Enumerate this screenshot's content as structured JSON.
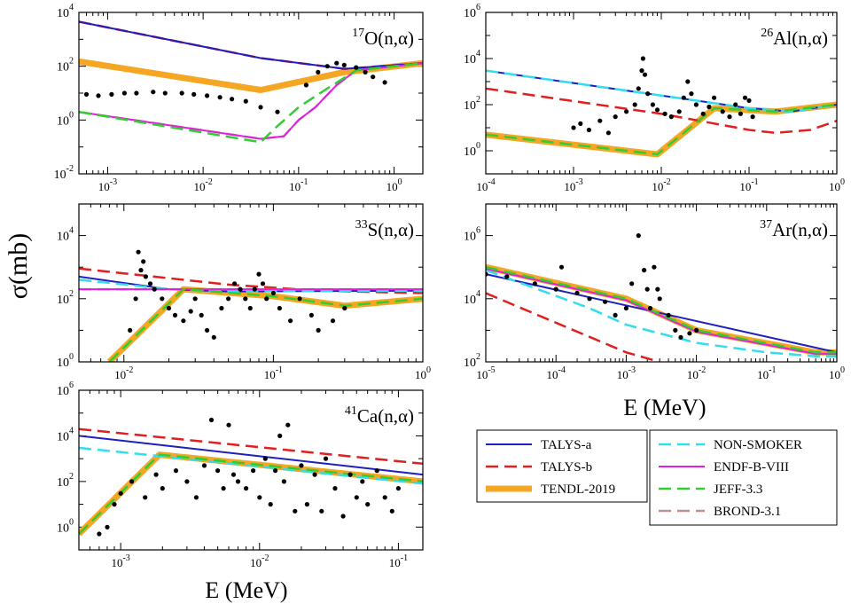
{
  "figure": {
    "ylabel": "σ(mb)",
    "xlabel": "E (MeV)"
  },
  "legend": {
    "groups": [
      {
        "items": [
          {
            "label": "TALYS-a",
            "color": "#1f1fbf",
            "style": "solid",
            "width": 2
          },
          {
            "label": "TALYS-b",
            "color": "#e01f1f",
            "style": "dashed",
            "width": 2.5
          },
          {
            "label": "TENDL-2019",
            "color": "#f5a623",
            "style": "solid",
            "width": 7
          }
        ]
      },
      {
        "items": [
          {
            "label": "NON-SMOKER",
            "color": "#33ddee",
            "style": "dashed",
            "width": 2.5
          },
          {
            "label": "ENDF-B-VIII",
            "color": "#e020e0",
            "style": "solid",
            "width": 2
          },
          {
            "label": "JEFF-3.3",
            "color": "#33cc33",
            "style": "dashed",
            "width": 2.5
          },
          {
            "label": "BROND-3.1",
            "color": "#c09090",
            "style": "dashed",
            "width": 2.5
          }
        ]
      }
    ]
  },
  "chart_data": [
    {
      "type": "line",
      "id": "O17",
      "title": {
        "mass": "17",
        "rest": "O(n,α)"
      },
      "xscale": "log",
      "yscale": "log",
      "xlim": [
        0.0005,
        2
      ],
      "ylim": [
        0.01,
        10000
      ],
      "xticks": [
        {
          "exp": "-3",
          "v": 0.001
        },
        {
          "exp": "-2",
          "v": 0.01
        },
        {
          "exp": "-1",
          "v": 0.1
        },
        {
          "exp": "0",
          "v": 1
        }
      ],
      "yticks": [
        {
          "exp": "-2",
          "v": 0.01
        },
        {
          "exp": "0",
          "v": 1
        },
        {
          "exp": "2",
          "v": 100
        },
        {
          "exp": "4",
          "v": 10000
        }
      ],
      "series": [
        {
          "name": "TENDL-2019",
          "x": [
            0.0005,
            0.04,
            0.3,
            2
          ],
          "y": [
            150,
            13,
            60,
            130
          ]
        },
        {
          "name": "TALYS-a",
          "x": [
            0.0005,
            0.04,
            0.3,
            2
          ],
          "y": [
            4500,
            200,
            80,
            130
          ]
        },
        {
          "name": "TALYS-b",
          "x": [
            0.0005,
            0.04,
            0.3,
            2
          ],
          "y": [
            4500,
            200,
            80,
            130
          ]
        },
        {
          "name": "JEFF-3.3",
          "x": [
            0.0005,
            0.04,
            0.06,
            0.1,
            0.2,
            0.4,
            2
          ],
          "y": [
            2,
            0.15,
            0.6,
            3,
            15,
            70,
            130
          ]
        },
        {
          "name": "ENDF-B-VIII",
          "x": [
            0.0005,
            0.04,
            0.07,
            0.1,
            0.15,
            0.25,
            0.4,
            2
          ],
          "y": [
            2,
            0.2,
            0.25,
            1,
            3,
            20,
            70,
            130
          ]
        },
        {
          "name": "BROND-3.1",
          "x": [
            0.0005,
            0.04,
            0.07,
            0.1,
            0.15,
            0.25,
            0.4,
            2
          ],
          "y": [
            2,
            0.2,
            0.25,
            1,
            3,
            20,
            70,
            130
          ]
        },
        {
          "name": "data",
          "kind": "points",
          "x": [
            0.0006,
            0.0008,
            0.0011,
            0.0015,
            0.002,
            0.003,
            0.004,
            0.006,
            0.008,
            0.011,
            0.015,
            0.02,
            0.028,
            0.04,
            0.06,
            0.12,
            0.16,
            0.2,
            0.25,
            0.3,
            0.4,
            0.5,
            0.6,
            0.8
          ],
          "y": [
            9,
            8,
            9,
            10,
            10,
            11,
            10,
            10,
            9,
            8,
            7,
            6,
            5,
            3,
            2,
            20,
            60,
            100,
            130,
            110,
            90,
            60,
            40,
            25
          ]
        }
      ]
    },
    {
      "type": "line",
      "id": "Al26",
      "title": {
        "mass": "26",
        "rest": "Al(n,α)"
      },
      "xscale": "log",
      "yscale": "log",
      "xlim": [
        0.0001,
        1
      ],
      "ylim": [
        0.1,
        1000000
      ],
      "xticks": [
        {
          "exp": "-4",
          "v": 0.0001
        },
        {
          "exp": "-3",
          "v": 0.001
        },
        {
          "exp": "-2",
          "v": 0.01
        },
        {
          "exp": "-1",
          "v": 0.1
        },
        {
          "exp": "0",
          "v": 1
        }
      ],
      "yticks": [
        {
          "exp": "0",
          "v": 1
        },
        {
          "exp": "2",
          "v": 100
        },
        {
          "exp": "4",
          "v": 10000
        },
        {
          "exp": "6",
          "v": 1000000
        }
      ],
      "series": [
        {
          "name": "TENDL-2019",
          "x": [
            0.0001,
            0.009,
            0.04,
            0.2,
            1
          ],
          "y": [
            5,
            0.7,
            70,
            50,
            100
          ]
        },
        {
          "name": "JEFF-3.3",
          "x": [
            0.0001,
            0.009,
            0.04,
            0.2,
            1
          ],
          "y": [
            5,
            0.7,
            70,
            50,
            100
          ]
        },
        {
          "name": "TALYS-a",
          "x": [
            0.0001,
            0.01,
            0.1,
            0.3,
            1
          ],
          "y": [
            3000,
            250,
            70,
            50,
            100
          ]
        },
        {
          "name": "NON-SMOKER",
          "x": [
            0.0001,
            0.01,
            0.1,
            0.3,
            1
          ],
          "y": [
            3000,
            250,
            70,
            50,
            100
          ]
        },
        {
          "name": "TALYS-b",
          "x": [
            0.0001,
            0.01,
            0.1,
            0.2,
            0.5,
            1
          ],
          "y": [
            500,
            40,
            8,
            6,
            8,
            20
          ]
        },
        {
          "name": "data",
          "kind": "points",
          "x": [
            0.001,
            0.0012,
            0.0015,
            0.002,
            0.0025,
            0.003,
            0.004,
            0.005,
            0.0055,
            0.006,
            0.0062,
            0.0065,
            0.007,
            0.008,
            0.009,
            0.011,
            0.013,
            0.016,
            0.018,
            0.02,
            0.022,
            0.025,
            0.03,
            0.035,
            0.04,
            0.05,
            0.06,
            0.07,
            0.08,
            0.09,
            0.1,
            0.11
          ],
          "y": [
            10,
            15,
            8,
            20,
            6,
            30,
            50,
            100,
            500,
            3000,
            10000,
            2000,
            300,
            100,
            60,
            40,
            30,
            50,
            200,
            1000,
            300,
            100,
            40,
            80,
            200,
            50,
            30,
            100,
            40,
            200,
            150,
            30
          ]
        }
      ]
    },
    {
      "type": "line",
      "id": "S33",
      "title": {
        "mass": "33",
        "rest": "S(n,α)"
      },
      "xscale": "log",
      "yscale": "log",
      "xlim": [
        0.005,
        1
      ],
      "ylim": [
        1,
        100000
      ],
      "xticks": [
        {
          "exp": "-2",
          "v": 0.01
        },
        {
          "exp": "-1",
          "v": 0.1
        },
        {
          "exp": "0",
          "v": 1
        }
      ],
      "yticks": [
        {
          "exp": "0",
          "v": 1
        },
        {
          "exp": "2",
          "v": 100
        },
        {
          "exp": "4",
          "v": 10000
        }
      ],
      "series": [
        {
          "name": "TENDL-2019",
          "x": [
            0.008,
            0.025,
            0.1,
            0.3,
            1
          ],
          "y": [
            1,
            200,
            120,
            60,
            100
          ]
        },
        {
          "name": "JEFF-3.3",
          "x": [
            0.008,
            0.025,
            0.1,
            0.3,
            1
          ],
          "y": [
            1,
            200,
            120,
            60,
            100
          ]
        },
        {
          "name": "TALYS-b",
          "x": [
            0.005,
            0.05,
            0.2,
            1
          ],
          "y": [
            900,
            280,
            180,
            150
          ]
        },
        {
          "name": "TALYS-a",
          "x": [
            0.005,
            0.02,
            0.05,
            1
          ],
          "y": [
            500,
            200,
            170,
            180
          ]
        },
        {
          "name": "NON-SMOKER",
          "x": [
            0.005,
            0.02,
            0.05,
            1
          ],
          "y": [
            400,
            200,
            170,
            180
          ]
        },
        {
          "name": "ENDF-B-VIII",
          "x": [
            0.005,
            1
          ],
          "y": [
            200,
            200
          ]
        },
        {
          "name": "BROND-3.1",
          "x": [
            0.005,
            1
          ],
          "y": [
            200,
            200
          ]
        },
        {
          "name": "data",
          "kind": "points",
          "x": [
            0.011,
            0.012,
            0.0125,
            0.013,
            0.0135,
            0.014,
            0.015,
            0.016,
            0.018,
            0.02,
            0.022,
            0.025,
            0.028,
            0.03,
            0.033,
            0.036,
            0.04,
            0.045,
            0.05,
            0.055,
            0.06,
            0.065,
            0.07,
            0.075,
            0.08,
            0.085,
            0.09,
            0.1,
            0.11,
            0.13,
            0.15,
            0.18,
            0.2,
            0.25,
            0.3
          ],
          "y": [
            10,
            100,
            3000,
            800,
            1500,
            500,
            300,
            200,
            100,
            50,
            30,
            20,
            40,
            100,
            30,
            10,
            6,
            50,
            100,
            300,
            200,
            100,
            50,
            200,
            600,
            300,
            100,
            150,
            50,
            20,
            100,
            30,
            10,
            20,
            50
          ]
        }
      ]
    },
    {
      "type": "line",
      "id": "Ar37",
      "title": {
        "mass": "37",
        "rest": "Ar(n,α)"
      },
      "xscale": "log",
      "yscale": "log",
      "xlim": [
        1e-05,
        1
      ],
      "ylim": [
        100,
        10000000
      ],
      "xticks": [
        {
          "exp": "-5",
          "v": 1e-05
        },
        {
          "exp": "-4",
          "v": 0.0001
        },
        {
          "exp": "-3",
          "v": 0.001
        },
        {
          "exp": "-2",
          "v": 0.01
        },
        {
          "exp": "-1",
          "v": 0.1
        },
        {
          "exp": "0",
          "v": 1
        }
      ],
      "yticks": [
        {
          "exp": "2",
          "v": 100
        },
        {
          "exp": "4",
          "v": 10000
        },
        {
          "exp": "6",
          "v": 1000000
        }
      ],
      "series": [
        {
          "name": "TENDL-2019",
          "x": [
            1e-05,
            0.001,
            0.01,
            0.5,
            1
          ],
          "y": [
            100000,
            10000,
            1000,
            200,
            200
          ]
        },
        {
          "name": "JEFF-3.3",
          "x": [
            1e-05,
            0.001,
            0.01,
            0.5,
            1
          ],
          "y": [
            100000,
            10000,
            1000,
            200,
            200
          ]
        },
        {
          "name": "ENDF-B-VIII",
          "x": [
            1e-05,
            0.001,
            0.01,
            0.5,
            1
          ],
          "y": [
            90000,
            9000,
            900,
            180,
            180
          ]
        },
        {
          "name": "BROND-3.1",
          "x": [
            1e-05,
            0.001,
            0.01,
            0.5,
            1
          ],
          "y": [
            90000,
            9000,
            900,
            180,
            180
          ]
        },
        {
          "name": "TALYS-a",
          "x": [
            1e-05,
            1
          ],
          "y": [
            60000,
            200
          ]
        },
        {
          "name": "NON-SMOKER",
          "x": [
            1e-05,
            0.0003,
            0.001,
            0.01,
            0.1,
            0.5,
            1
          ],
          "y": [
            80000,
            5000,
            1500,
            400,
            200,
            150,
            150
          ]
        },
        {
          "name": "TALYS-b",
          "x": [
            1e-05,
            0.001,
            0.003
          ],
          "y": [
            15000,
            200,
            100
          ]
        },
        {
          "name": "data",
          "kind": "points",
          "x": [
            1e-05,
            2e-05,
            5e-05,
            0.0001,
            0.00012,
            0.0002,
            0.0003,
            0.0005,
            0.0007,
            0.001,
            0.0012,
            0.0015,
            0.0018,
            0.002,
            0.0022,
            0.0025,
            0.0028,
            0.003,
            0.004,
            0.005,
            0.006,
            0.008,
            0.01
          ],
          "y": [
            60000,
            50000,
            30000,
            20000,
            100000,
            15000,
            10000,
            8000,
            3000,
            5000,
            30000,
            1000000,
            80000,
            20000,
            5000,
            100000,
            20000,
            10000,
            3000,
            1000,
            600,
            800,
            1000
          ]
        }
      ]
    },
    {
      "type": "line",
      "id": "Ca41",
      "title": {
        "mass": "41",
        "rest": "Ca(n,α)"
      },
      "xscale": "log",
      "yscale": "log",
      "xlim": [
        0.0005,
        0.15
      ],
      "ylim": [
        0.1,
        1000000
      ],
      "xticks": [
        {
          "exp": "-3",
          "v": 0.001
        },
        {
          "exp": "-2",
          "v": 0.01
        },
        {
          "exp": "-1",
          "v": 0.1
        }
      ],
      "yticks": [
        {
          "exp": "0",
          "v": 1
        },
        {
          "exp": "2",
          "v": 100
        },
        {
          "exp": "4",
          "v": 10000
        },
        {
          "exp": "6",
          "v": 1000000
        }
      ],
      "series": [
        {
          "name": "TENDL-2019",
          "x": [
            0.0005,
            0.0019,
            0.15
          ],
          "y": [
            0.5,
            1500,
            100
          ]
        },
        {
          "name": "JEFF-3.3",
          "x": [
            0.0005,
            0.0019,
            0.15
          ],
          "y": [
            0.5,
            1500,
            100
          ]
        },
        {
          "name": "NON-SMOKER",
          "x": [
            0.0005,
            0.0019,
            0.15
          ],
          "y": [
            3000,
            1300,
            80
          ]
        },
        {
          "name": "TALYS-a",
          "x": [
            0.0005,
            0.15
          ],
          "y": [
            10000,
            200
          ]
        },
        {
          "name": "TALYS-b",
          "x": [
            0.0005,
            0.15
          ],
          "y": [
            20000,
            600
          ]
        },
        {
          "name": "data",
          "kind": "points",
          "x": [
            0.0007,
            0.0008,
            0.0009,
            0.001,
            0.0012,
            0.0015,
            0.0018,
            0.002,
            0.0025,
            0.003,
            0.0035,
            0.004,
            0.0045,
            0.005,
            0.0055,
            0.006,
            0.0065,
            0.007,
            0.008,
            0.009,
            0.01,
            0.011,
            0.012,
            0.013,
            0.014,
            0.015,
            0.016,
            0.018,
            0.02,
            0.022,
            0.025,
            0.028,
            0.03,
            0.035,
            0.04,
            0.045,
            0.05,
            0.055,
            0.06,
            0.07,
            0.08,
            0.09,
            0.1
          ],
          "y": [
            0.5,
            1,
            10,
            30,
            100,
            20,
            200,
            50,
            300,
            100,
            20,
            500,
            50000,
            300,
            50,
            30000,
            200,
            100,
            50,
            300,
            20,
            1000,
            10,
            300,
            10000,
            100,
            30000,
            5,
            500,
            10,
            200,
            5,
            1000,
            50,
            3,
            200,
            20,
            100,
            10,
            300,
            20,
            5,
            50
          ]
        }
      ]
    }
  ]
}
